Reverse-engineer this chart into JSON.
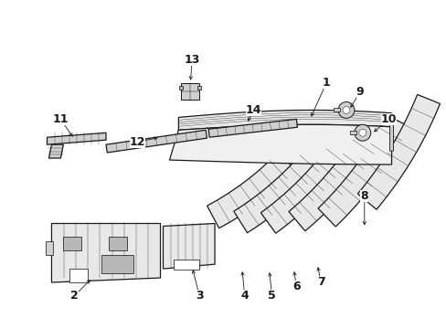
{
  "bg_color": "#ffffff",
  "line_color": "#1a1a1a",
  "fill_light": "#e8e8e8",
  "fill_mid": "#d0d0d0",
  "fill_dark": "#b8b8b8",
  "figsize": [
    4.89,
    3.6
  ],
  "dpi": 100,
  "label_fs": 9,
  "lw_main": 0.9,
  "lw_detail": 0.5
}
